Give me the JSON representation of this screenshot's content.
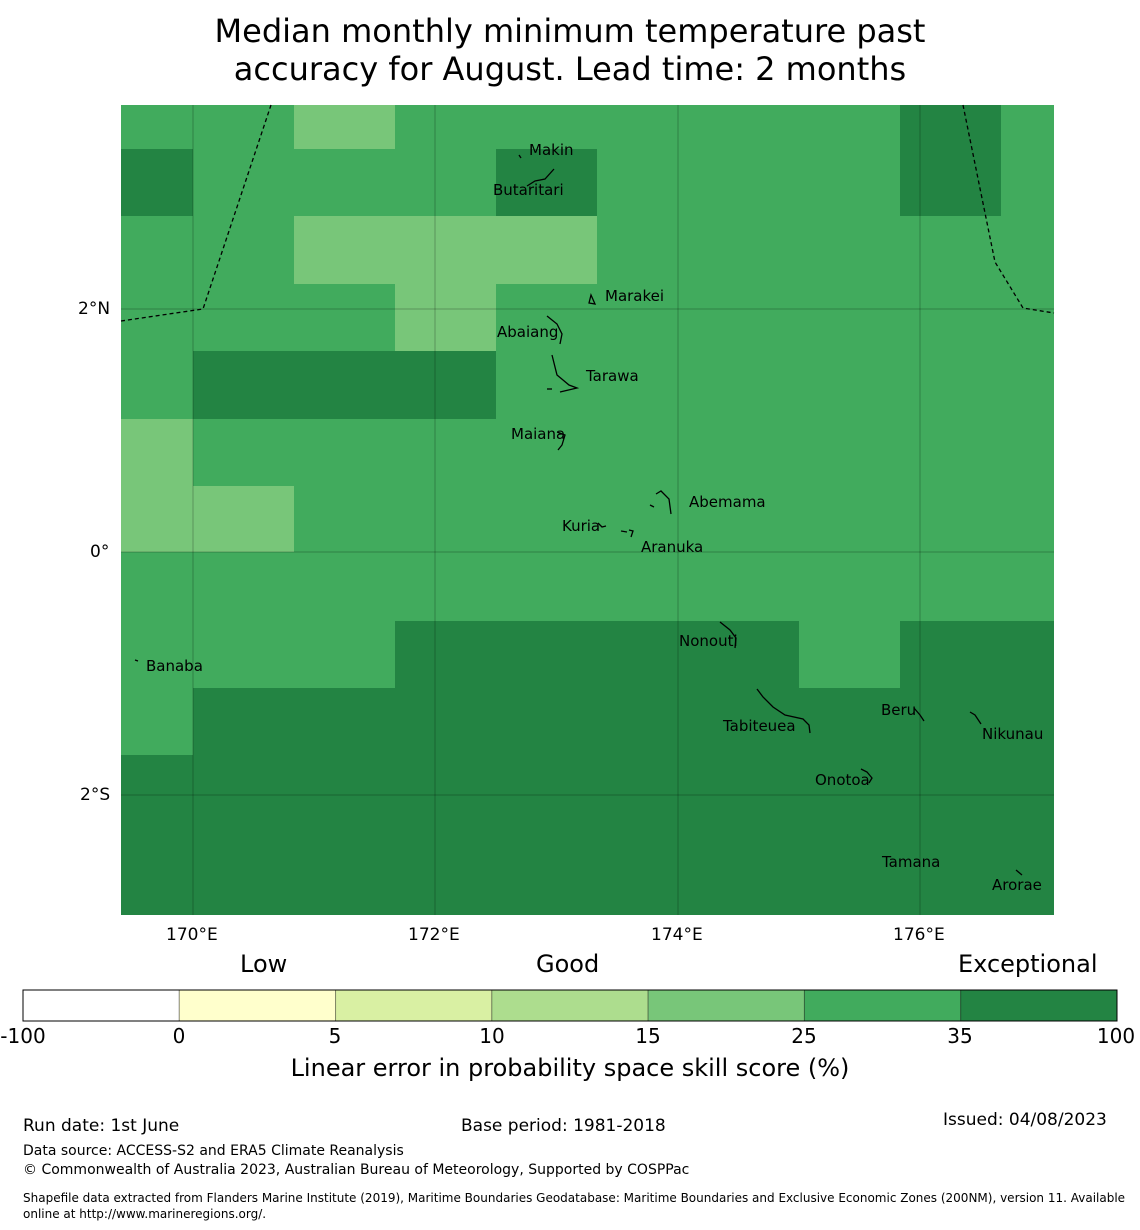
{
  "title_line1": "Median monthly minimum temperature past",
  "title_line2": "accuracy for August. Lead time: 2 months",
  "map": {
    "lat_ticks": [
      "2°N",
      "0°",
      "2°S"
    ],
    "lon_ticks": [
      "170°E",
      "172°E",
      "174°E",
      "176°E"
    ],
    "places": [
      "Makin",
      "Butaritari",
      "Marakei",
      "Abaiang",
      "Tarawa",
      "Maiana",
      "Abemama",
      "Kuria",
      "Aranuka",
      "Nonouti",
      "Banaba",
      "Beru",
      "Tabiteuea",
      "Nikunau",
      "Onotoa",
      "Tamana",
      "Arorae"
    ]
  },
  "legend": {
    "categories": [
      "Low",
      "Good",
      "Exceptional"
    ],
    "ticks": [
      "-100",
      "0",
      "5",
      "10",
      "15",
      "25",
      "35",
      "100"
    ],
    "colors": [
      "#ffffff",
      "#ffffcc",
      "#d9f0a3",
      "#addd8e",
      "#78c679",
      "#41ab5d",
      "#238443"
    ],
    "title": "Linear error in probability space skill score (%)"
  },
  "footer": {
    "run_date": "Run date: 1st June",
    "base_period": "Base period: 1981-2018",
    "issued": "Issued: 04/08/2023",
    "data_source": "Data source: ACCESS-S2 and ERA5 Climate Reanalysis",
    "copyright": "© Commonwealth of Australia 2023, Australian Bureau of Meteorology, Supported by COSPPac",
    "shapefile_line1": "Shapefile data extracted from Flanders Marine Institute (2019), Maritime Boundaries Geodatabase: Maritime Boundaries and Exclusive Economic Zones (200NM), version 11. Available",
    "shapefile_line2": "online at http://www.marineregions.org/."
  }
}
